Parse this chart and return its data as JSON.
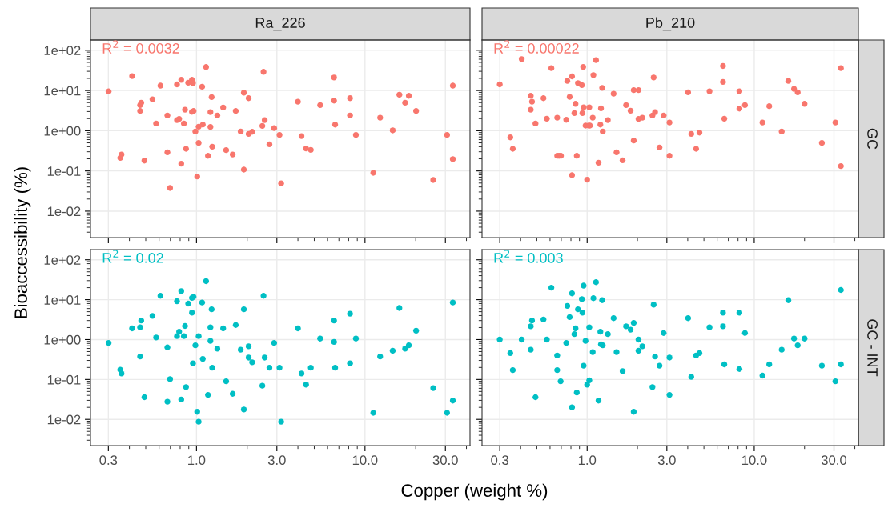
{
  "chart_data": [
    {
      "type": "scatter",
      "title": "Ra_226",
      "ylabel": "Bioaccessibility (%)",
      "log": "xy",
      "grid": true,
      "legend": false,
      "marker": "circle",
      "tick_labels": "y",
      "annotations": [
        "R$^{2}$ = 0.0032"
      ],
      "xlim": [
        0.235,
        42
      ],
      "ylim": [
        0.0022,
        180
      ],
      "xticks": [
        {
          "value": 0.3,
          "label": null
        },
        {
          "value": 1,
          "label": null
        },
        {
          "value": 3,
          "label": null
        },
        {
          "value": 10,
          "label": null
        },
        {
          "value": 30,
          "label": null
        }
      ],
      "yticks": [
        {
          "value": 0.01,
          "label": "1e-02"
        },
        {
          "value": 0.1,
          "label": "1e-01"
        },
        {
          "value": 1,
          "label": "1e+00"
        },
        {
          "value": 10,
          "label": "1e+01"
        },
        {
          "value": 100,
          "label": "1e+02"
        }
      ],
      "series": [
        {
          "color": "#f8766d",
          "x": [
            0.301,
            0.353,
            0.359,
            0.415,
            0.463,
            0.47,
            0.463,
            0.491,
            0.548,
            0.576,
            0.611,
            0.672,
            0.672,
            0.697,
            0.766,
            0.766,
            0.789,
            0.812,
            0.812,
            0.842,
            0.855,
            0.867,
            0.893,
            0.94,
            0.94,
            0.953,
            0.961,
            0.985,
            1.01,
            1.03,
            1.03,
            1.08,
            1.09,
            1.14,
            1.17,
            1.21,
            1.21,
            1.23,
            1.24,
            1.33,
            1.44,
            1.5,
            1.64,
            1.71,
            1.83,
            1.91,
            1.91,
            2.04,
            2.04,
            2.14,
            2.46,
            2.5,
            2.54,
            2.71,
            2.89,
            3.11,
            3.18,
            4.0,
            4.2,
            4.47,
            4.77,
            5.42,
            6.55,
            6.55,
            6.65,
            8.15,
            8.15,
            8.83,
            11.2,
            12.3,
            14.6,
            16.0,
            17.3,
            18.2,
            20.1,
            25.4,
            30.7,
            33.2,
            33.2
          ],
          "values": [
            9.5,
            0.211,
            0.257,
            22.8,
            4.32,
            4.96,
            3.09,
            0.181,
            6.04,
            1.51,
            13.2,
            2.39,
            0.291,
            0.0377,
            14.2,
            1.84,
            1.96,
            18.4,
            0.151,
            1.51,
            3.34,
            0.355,
            15.6,
            18.4,
            2.95,
            15.3,
            3.09,
            0.955,
            0.0726,
            0.496,
            1.26,
            12.4,
            1.42,
            38.3,
            0.238,
            1.24,
            2.91,
            6.83,
            0.401,
            2.39,
            3.77,
            0.329,
            0.257,
            3.09,
            0.955,
            8.85,
            0.108,
            6.43,
            0.833,
            0.94,
            1.32,
            29.1,
            1.84,
            0.459,
            1.16,
            0.784,
            0.0489,
            5.27,
            0.737,
            0.36,
            0.334,
            4.32,
            21.1,
            5.6,
            1.42,
            6.43,
            2.39,
            0.784,
            0.0899,
            2.11,
            1.02,
            7.83,
            4.96,
            7.37,
            3.09,
            0.0596,
            0.784,
            13.2,
            0.196
          ]
        }
      ]
    },
    {
      "type": "scatter",
      "title": "Pb_210",
      "y2label": "GC",
      "log": "xy",
      "grid": true,
      "legend": false,
      "marker": "circle",
      "tick_labels": false,
      "annotations": [
        "R$^{2}$ = 0.00022"
      ],
      "xlim": [
        0.235,
        42
      ],
      "ylim": [
        0.0022,
        180
      ],
      "xticks": [
        {
          "value": 0.3,
          "label": null
        },
        {
          "value": 1,
          "label": null
        },
        {
          "value": 3,
          "label": null
        },
        {
          "value": 10,
          "label": null
        },
        {
          "value": 30,
          "label": null
        }
      ],
      "yticks": [
        {
          "value": 0.01,
          "label": null
        },
        {
          "value": 0.1,
          "label": null
        },
        {
          "value": 1,
          "label": null
        },
        {
          "value": 10,
          "label": null
        },
        {
          "value": 100,
          "label": null
        }
      ],
      "series": [
        {
          "color": "#f8766d",
          "x": [
            0.3,
            0.347,
            0.359,
            0.406,
            0.46,
            0.468,
            0.46,
            0.491,
            0.548,
            0.574,
            0.611,
            0.662,
            0.662,
            0.679,
            0.697,
            0.75,
            0.761,
            0.786,
            0.812,
            0.812,
            0.839,
            0.852,
            0.867,
            0.881,
            0.93,
            0.937,
            0.947,
            0.953,
            0.978,
            1.0,
            1.02,
            1.03,
            1.04,
            1.08,
            1.09,
            1.13,
            1.17,
            1.2,
            1.21,
            1.23,
            1.24,
            1.33,
            1.44,
            1.5,
            1.63,
            1.71,
            1.82,
            1.9,
            1.9,
            2.03,
            2.03,
            2.14,
            2.46,
            2.5,
            2.55,
            2.71,
            2.87,
            3.11,
            3.11,
            4.02,
            4.2,
            4.49,
            4.7,
            5.4,
            6.5,
            6.5,
            6.62,
            8.15,
            8.15,
            8.8,
            11.2,
            12.3,
            14.6,
            16.0,
            17.3,
            18.2,
            20.0,
            25.4,
            30.6,
            33.0,
            33.0
          ],
          "values": [
            14.2,
            0.683,
            0.355,
            60.4,
            7.37,
            5.27,
            3.34,
            1.51,
            6.43,
            1.99,
            36.0,
            2.11,
            0.238,
            0.238,
            0.238,
            1.87,
            17.3,
            6.93,
            22.4,
            0.0784,
            2.74,
            4.66,
            0.238,
            15.3,
            13.6,
            2.74,
            38.4,
            3.83,
            1.34,
            0.0604,
            1.34,
            3.83,
            1.34,
            2.11,
            24.2,
            56.9,
            0.16,
            1.42,
            3.6,
            11.6,
            0.955,
            1.84,
            8.33,
            0.291,
            0.184,
            4.32,
            3.14,
            10.2,
            0.569,
            10.2,
            1.96,
            2.11,
            2.39,
            21.1,
            2.91,
            0.383,
            2.39,
            1.6,
            0.238,
            8.99,
            0.833,
            0.355,
            0.899,
            9.55,
            40.7,
            16.3,
            1.99,
            9.55,
            3.55,
            4.32,
            1.6,
            4.07,
            0.955,
            17.3,
            11.0,
            8.99,
            4.66,
            0.496,
            1.6,
            36.0,
            0.132
          ]
        }
      ]
    },
    {
      "type": "scatter",
      "xlabel": "Copper (weight %)",
      "log": "xy",
      "grid": true,
      "legend": false,
      "marker": "circle",
      "annotations": [
        "R$^{2}$ = 0.02"
      ],
      "xlim": [
        0.235,
        42
      ],
      "ylim": [
        0.0022,
        180
      ],
      "xticks": [
        {
          "value": 0.3,
          "label": "0.3"
        },
        {
          "value": 1,
          "label": "1.0"
        },
        {
          "value": 3,
          "label": "3.0"
        },
        {
          "value": 10,
          "label": "10.0"
        },
        {
          "value": 30,
          "label": "30.0"
        }
      ],
      "yticks": [
        {
          "value": 0.01,
          "label": "1e-02"
        },
        {
          "value": 0.1,
          "label": "1e-01"
        },
        {
          "value": 1,
          "label": "1e+00"
        },
        {
          "value": 10,
          "label": "1e+01"
        },
        {
          "value": 100,
          "label": "1e+02"
        }
      ],
      "series": [
        {
          "color": "#00bfc4",
          "x": [
            0.301,
            0.353,
            0.359,
            0.415,
            0.463,
            0.47,
            0.463,
            0.491,
            0.548,
            0.576,
            0.611,
            0.672,
            0.672,
            0.697,
            0.766,
            0.766,
            0.789,
            0.812,
            0.812,
            0.842,
            0.855,
            0.867,
            0.893,
            0.94,
            0.94,
            0.953,
            0.961,
            0.985,
            1.01,
            1.03,
            1.03,
            1.08,
            1.09,
            1.14,
            1.17,
            1.21,
            1.21,
            1.23,
            1.24,
            1.33,
            1.44,
            1.5,
            1.64,
            1.71,
            1.83,
            1.91,
            1.91,
            2.04,
            2.04,
            2.14,
            2.46,
            2.5,
            2.54,
            2.71,
            2.89,
            3.11,
            3.18,
            4.0,
            4.2,
            4.47,
            4.77,
            5.42,
            6.55,
            6.55,
            6.65,
            8.15,
            8.15,
            8.83,
            11.2,
            12.3,
            14.6,
            16.0,
            17.3,
            18.2,
            20.1,
            25.4,
            30.7,
            33.2,
            33.2
          ],
          "values": [
            0.822,
            0.175,
            0.141,
            1.91,
            2.03,
            3.0,
            0.376,
            0.0359,
            3.93,
            1.13,
            12.5,
            0.637,
            0.0278,
            0.102,
            9.14,
            1.22,
            1.57,
            16.4,
            0.0314,
            1.22,
            2.19,
            0.0646,
            7.98,
            11.1,
            4.71,
            0.254,
            11.8,
            0.718,
            0.0155,
            0.00873,
            1.22,
            8.47,
            0.328,
            29.1,
            0.0411,
            0.927,
            2.03,
            5.73,
            0.197,
            0.59,
            1.91,
            0.09,
            0.0437,
            2.32,
            0.556,
            5.73,
            0.0177,
            0.676,
            0.354,
            0.27,
            0.0697,
            12.5,
            0.354,
            0.197,
            0.822,
            0.197,
            0.00873,
            1.91,
            0.141,
            0.074,
            0.197,
            1.06,
            3.0,
            0.873,
            0.197,
            4.44,
            0.254,
            1.06,
            0.0146,
            0.376,
            0.524,
            6.18,
            0.59,
            0.718,
            1.67,
            0.0608,
            0.0146,
            8.47,
            0.0296
          ]
        }
      ]
    },
    {
      "type": "scatter",
      "y2label": "GC - INT",
      "log": "xy",
      "grid": true,
      "legend": false,
      "marker": "circle",
      "tick_labels": "x",
      "annotations": [
        "R$^{2}$ = 0.003"
      ],
      "xlim": [
        0.235,
        42
      ],
      "ylim": [
        0.0022,
        180
      ],
      "xticks": [
        {
          "value": 0.3,
          "label": "0.3"
        },
        {
          "value": 1,
          "label": "1.0"
        },
        {
          "value": 3,
          "label": "3.0"
        },
        {
          "value": 10,
          "label": "10.0"
        },
        {
          "value": 30,
          "label": "30.0"
        }
      ],
      "yticks": [
        {
          "value": 0.01,
          "label": null
        },
        {
          "value": 0.1,
          "label": null
        },
        {
          "value": 1,
          "label": null
        },
        {
          "value": 10,
          "label": null
        },
        {
          "value": 100,
          "label": null
        }
      ],
      "series": [
        {
          "color": "#00bfc4",
          "x": [
            0.3,
            0.347,
            0.359,
            0.406,
            0.46,
            0.46,
            0.468,
            0.491,
            0.548,
            0.574,
            0.611,
            0.662,
            0.662,
            0.694,
            0.75,
            0.761,
            0.786,
            0.812,
            0.812,
            0.839,
            0.852,
            0.867,
            0.881,
            0.93,
            0.937,
            0.953,
            0.953,
            0.978,
            1.0,
            1.03,
            1.03,
            1.08,
            1.09,
            1.13,
            1.17,
            1.2,
            1.21,
            1.23,
            1.24,
            1.33,
            1.44,
            1.5,
            1.63,
            1.71,
            1.82,
            1.9,
            1.9,
            2.03,
            2.03,
            2.14,
            2.46,
            2.5,
            2.55,
            2.71,
            2.87,
            3.11,
            3.11,
            4.02,
            4.2,
            4.49,
            4.7,
            5.4,
            6.5,
            6.5,
            6.62,
            8.15,
            8.15,
            8.8,
            11.2,
            12.3,
            14.6,
            16.0,
            17.3,
            18.2,
            20.0,
            25.4,
            30.6,
            33.0,
            33.0
          ],
          "values": [
            1.0,
            0.457,
            0.172,
            1.0,
            0.556,
            2.15,
            3.0,
            0.0359,
            3.19,
            1.0,
            20.0,
            0.399,
            0.172,
            0.09,
            0.822,
            6.97,
            3.65,
            14.4,
            0.02,
            1.37,
            1.91,
            0.0471,
            5.73,
            10.3,
            4.71,
            22.5,
            0.222,
            0.927,
            0.074,
            2.03,
            0.0955,
            0.486,
            10.9,
            27.4,
            0.0296,
            1.57,
            0.762,
            9.7,
            0.718,
            1.37,
            3.44,
            0.486,
            0.162,
            2.15,
            1.77,
            2.62,
            0.0155,
            1.0,
            0.524,
            0.676,
            0.0646,
            7.51,
            0.376,
            0.222,
            1.46,
            0.354,
            0.0411,
            3.44,
            0.116,
            0.399,
            0.457,
            2.03,
            4.71,
            2.15,
            0.239,
            4.71,
            0.183,
            1.46,
            0.125,
            0.239,
            0.556,
            9.7,
            1.06,
            0.718,
            1.06,
            0.222,
            0.09,
            17.5,
            0.239
          ]
        }
      ]
    }
  ]
}
